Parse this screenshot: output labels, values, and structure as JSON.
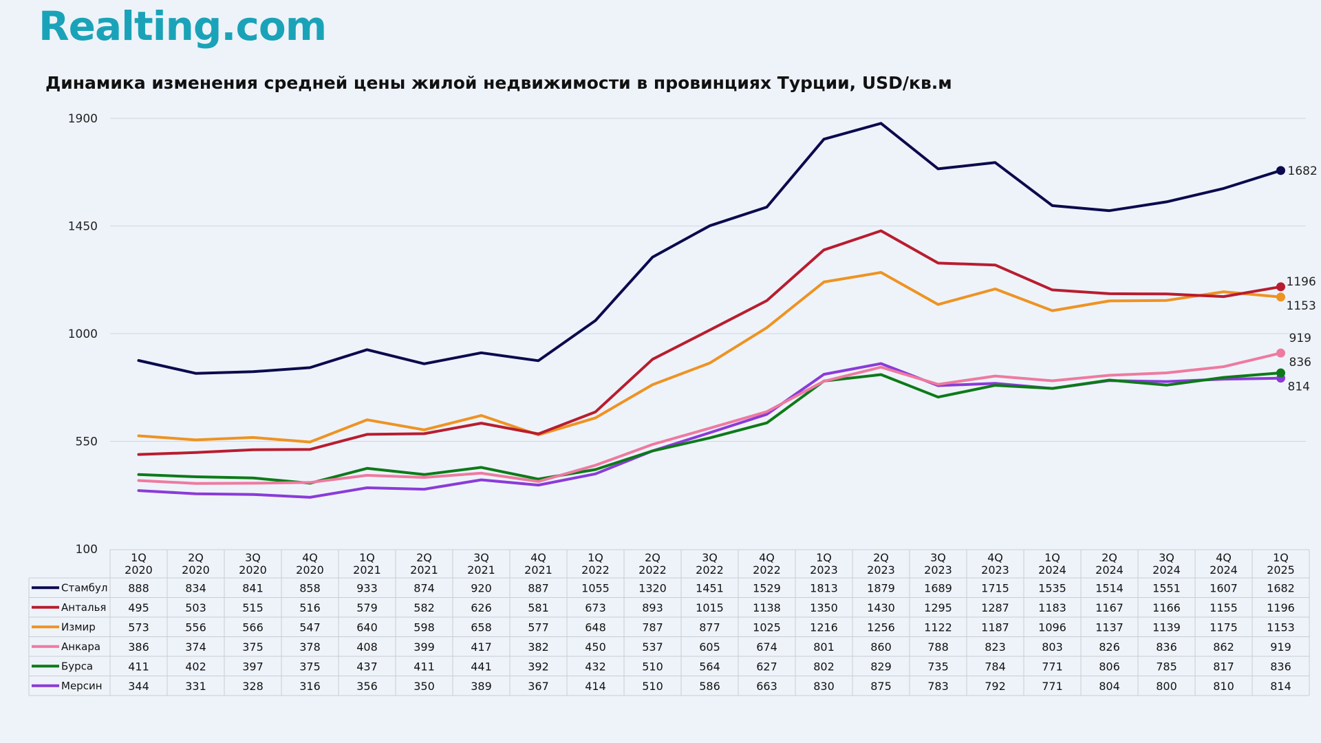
{
  "header": {
    "logo_text": "Realting.com",
    "title": "Динамика изменения средней цены жилой недвижимости в провинциях Турции, USD/кв.м"
  },
  "colors": {
    "Стамбул": "#0c0a4d",
    "Анталья": "#b81d2f",
    "Измир": "#ee9322",
    "Анкара": "#ee7aa0",
    "Бурса": "#0d7a18",
    "Мерсин": "#8a3bd8"
  },
  "chart_data": {
    "type": "line",
    "title": "Динамика изменения средней цены жилой недвижимости в провинциях Турции, USD/кв.м",
    "xlabel": "",
    "ylabel": "",
    "ylim": [
      100,
      1900
    ],
    "yticks": [
      100,
      550,
      1000,
      1450,
      1900
    ],
    "grid": true,
    "legend": "table-bottom",
    "categories": [
      [
        "1Q",
        "2020"
      ],
      [
        "2Q",
        "2020"
      ],
      [
        "3Q",
        "2020"
      ],
      [
        "4Q",
        "2020"
      ],
      [
        "1Q",
        "2021"
      ],
      [
        "2Q",
        "2021"
      ],
      [
        "3Q",
        "2021"
      ],
      [
        "4Q",
        "2021"
      ],
      [
        "1Q",
        "2022"
      ],
      [
        "2Q",
        "2022"
      ],
      [
        "3Q",
        "2022"
      ],
      [
        "4Q",
        "2022"
      ],
      [
        "1Q",
        "2023"
      ],
      [
        "2Q",
        "2023"
      ],
      [
        "3Q",
        "2023"
      ],
      [
        "4Q",
        "2023"
      ],
      [
        "1Q",
        "2024"
      ],
      [
        "2Q",
        "2024"
      ],
      [
        "3Q",
        "2024"
      ],
      [
        "4Q",
        "2024"
      ],
      [
        "1Q",
        "2025"
      ]
    ],
    "series": [
      {
        "name": "Стамбул",
        "values": [
          888,
          834,
          841,
          858,
          933,
          874,
          920,
          887,
          1055,
          1320,
          1451,
          1529,
          1813,
          1879,
          1689,
          1715,
          1535,
          1514,
          1551,
          1607,
          1682
        ]
      },
      {
        "name": "Анталья",
        "values": [
          495,
          503,
          515,
          516,
          579,
          582,
          626,
          581,
          673,
          893,
          1015,
          1138,
          1350,
          1430,
          1295,
          1287,
          1183,
          1167,
          1166,
          1155,
          1196
        ]
      },
      {
        "name": "Измир",
        "values": [
          573,
          556,
          566,
          547,
          640,
          598,
          658,
          577,
          648,
          787,
          877,
          1025,
          1216,
          1256,
          1122,
          1187,
          1096,
          1137,
          1139,
          1175,
          1153
        ]
      },
      {
        "name": "Анкара",
        "values": [
          386,
          374,
          375,
          378,
          408,
          399,
          417,
          382,
          450,
          537,
          605,
          674,
          801,
          860,
          788,
          823,
          803,
          826,
          836,
          862,
          919
        ]
      },
      {
        "name": "Бурса",
        "values": [
          411,
          402,
          397,
          375,
          437,
          411,
          441,
          392,
          432,
          510,
          564,
          627,
          802,
          829,
          735,
          784,
          771,
          806,
          785,
          817,
          836
        ]
      },
      {
        "name": "Мерсин",
        "values": [
          344,
          331,
          328,
          316,
          356,
          350,
          389,
          367,
          414,
          510,
          586,
          663,
          830,
          875,
          783,
          792,
          771,
          804,
          800,
          810,
          814
        ]
      }
    ]
  }
}
